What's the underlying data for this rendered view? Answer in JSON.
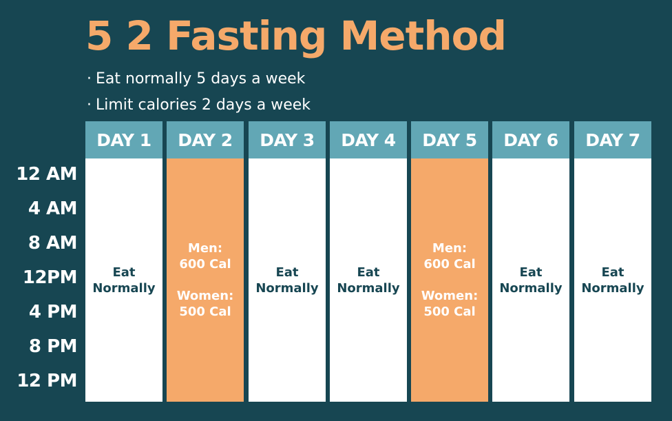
{
  "title": "5 2 Fasting Method",
  "bullets": [
    "Eat normally 5 days a week",
    "Limit calories 2 days a week"
  ],
  "time_labels": [
    "12 AM",
    "4 AM",
    "8 AM",
    "12PM",
    "4 PM",
    "8 PM",
    "12 PM"
  ],
  "days": [
    {
      "label": "DAY 1",
      "type": "normal",
      "line1": "Eat",
      "line2": "Normally"
    },
    {
      "label": "DAY 2",
      "type": "fast",
      "men_label": "Men:",
      "men_cal": "600 Cal",
      "women_label": "Women:",
      "women_cal": "500 Cal"
    },
    {
      "label": "DAY 3",
      "type": "normal",
      "line1": "Eat",
      "line2": "Normally"
    },
    {
      "label": "DAY 4",
      "type": "normal",
      "line1": "Eat",
      "line2": "Normally"
    },
    {
      "label": "DAY 5",
      "type": "fast",
      "men_label": "Men:",
      "men_cal": "600 Cal",
      "women_label": "Women:",
      "women_cal": "500 Cal"
    },
    {
      "label": "DAY 6",
      "type": "normal",
      "line1": "Eat",
      "line2": "Normally"
    },
    {
      "label": "DAY 7",
      "type": "normal",
      "line1": "Eat",
      "line2": "Normally"
    }
  ],
  "colors": {
    "background": "#174652",
    "accent_orange": "#F5A96A",
    "header_teal": "#62A7B5",
    "cell_white": "#FFFFFF"
  }
}
